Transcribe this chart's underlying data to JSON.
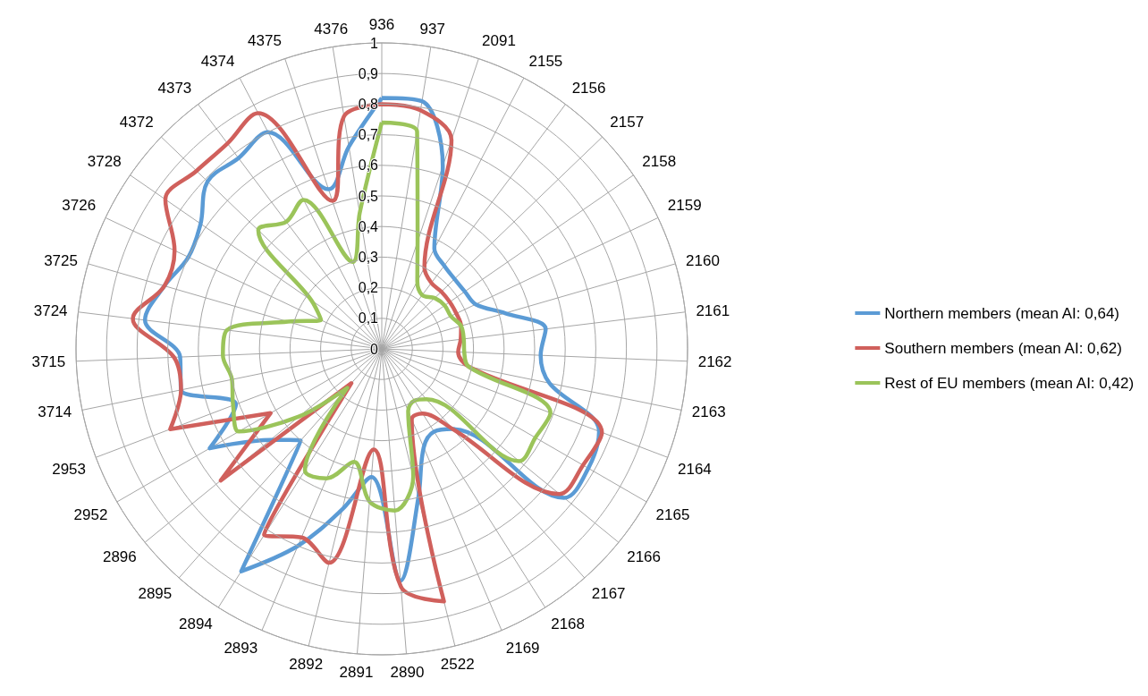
{
  "chart_data": {
    "type": "radar",
    "categories": [
      "936",
      "937",
      "2091",
      "2155",
      "2156",
      "2157",
      "2158",
      "2159",
      "2160",
      "2161",
      "2162",
      "2163",
      "2164",
      "2165",
      "2166",
      "2167",
      "2168",
      "2169",
      "2522",
      "2890",
      "2891",
      "2892",
      "2893",
      "2894",
      "2895",
      "2896",
      "2952",
      "2953",
      "3714",
      "3715",
      "3724",
      "3725",
      "3726",
      "3728",
      "4372",
      "4373",
      "4374",
      "4375",
      "4376"
    ],
    "series": [
      {
        "name": "Northern members (mean AI: 0,64)",
        "color": "#5b9bd5",
        "values": [
          0.82,
          0.82,
          0.63,
          0.37,
          0.34,
          0.33,
          0.33,
          0.34,
          0.42,
          0.54,
          0.52,
          0.56,
          0.76,
          0.78,
          0.77,
          0.35,
          0.32,
          0.35,
          0.5,
          0.76,
          0.42,
          0.54,
          0.7,
          0.86,
          0.4,
          0.47,
          0.65,
          0.51,
          0.67,
          0.66,
          0.78,
          0.74,
          0.7,
          0.72,
          0.79,
          0.78,
          0.8,
          0.55,
          0.67
        ]
      },
      {
        "name": "Southern members (mean AI: 0,62)",
        "color": "#d0605c",
        "values": [
          0.8,
          0.79,
          0.72,
          0.3,
          0.27,
          0.27,
          0.27,
          0.27,
          0.27,
          0.26,
          0.25,
          0.29,
          0.77,
          0.76,
          0.75,
          0.35,
          0.25,
          0.25,
          0.85,
          0.78,
          0.33,
          0.72,
          0.67,
          0.72,
          0.15,
          0.68,
          0.42,
          0.74,
          0.67,
          0.68,
          0.82,
          0.74,
          0.75,
          0.86,
          0.84,
          0.84,
          0.87,
          0.51,
          0.77
        ]
      },
      {
        "name": "Rest of EU members (mean AI: 0,42)",
        "color": "#9bc45a",
        "values": [
          0.74,
          0.72,
          0.37,
          0.25,
          0.22,
          0.24,
          0.25,
          0.25,
          0.27,
          0.27,
          0.27,
          0.29,
          0.59,
          0.58,
          0.58,
          0.22,
          0.2,
          0.22,
          0.43,
          0.53,
          0.5,
          0.38,
          0.46,
          0.47,
          0.17,
          0.35,
          0.54,
          0.52,
          0.5,
          0.52,
          0.51,
          0.32,
          0.22,
          0.28,
          0.56,
          0.52,
          0.55,
          0.3,
          0.45
        ]
      }
    ],
    "ylim": [
      0,
      1
    ],
    "yticks": [
      0,
      {
        "value": 0.1,
        "label": "0,1"
      },
      {
        "value": 0.2,
        "label": "0,2"
      },
      {
        "value": 0.3,
        "label": "0,3"
      },
      {
        "value": 0.4,
        "label": "0,4"
      },
      {
        "value": 0.5,
        "label": "0,5"
      },
      {
        "value": 0.6,
        "label": "0,6"
      },
      {
        "value": 0.7,
        "label": "0,7"
      },
      {
        "value": 0.8,
        "label": "0,8"
      },
      {
        "value": 0.9,
        "label": "0,9"
      },
      1
    ],
    "grid": true,
    "legend": "right",
    "marker": "none"
  }
}
